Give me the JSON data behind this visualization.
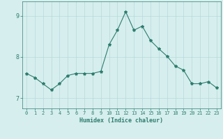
{
  "x": [
    0,
    1,
    2,
    3,
    4,
    5,
    6,
    7,
    8,
    9,
    10,
    11,
    12,
    13,
    14,
    15,
    16,
    17,
    18,
    19,
    20,
    21,
    22,
    23
  ],
  "y": [
    7.6,
    7.5,
    7.35,
    7.2,
    7.35,
    7.55,
    7.6,
    7.6,
    7.6,
    7.65,
    8.3,
    8.65,
    9.1,
    8.65,
    8.75,
    8.4,
    8.2,
    8.02,
    7.78,
    7.68,
    7.35,
    7.35,
    7.4,
    7.25
  ],
  "line_color": "#2e7d6e",
  "marker": "*",
  "marker_size": 3,
  "bg_color": "#d6eeee",
  "grid_color": "#b8d8d8",
  "xlabel": "Humidex (Indice chaleur)",
  "ylim": [
    6.75,
    9.35
  ],
  "xlim": [
    -0.5,
    23.5
  ],
  "yticks": [
    7,
    8,
    9
  ],
  "xticks": [
    0,
    1,
    2,
    3,
    4,
    5,
    6,
    7,
    8,
    9,
    10,
    11,
    12,
    13,
    14,
    15,
    16,
    17,
    18,
    19,
    20,
    21,
    22,
    23
  ],
  "tick_color": "#2e7d6e",
  "label_color": "#2e7d6e",
  "axis_color": "#2e7d6e",
  "tick_fontsize": 5,
  "xlabel_fontsize": 6,
  "ytick_fontsize": 6
}
